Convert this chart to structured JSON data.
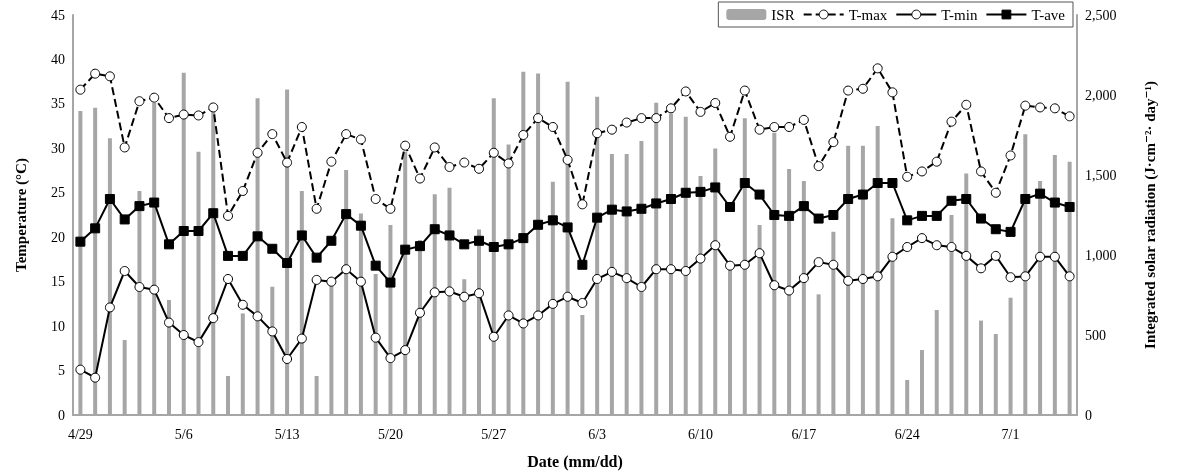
{
  "chart_data": {
    "type": "line",
    "xlabel": "Date (mm/dd)",
    "ylabel": "Temperature (°C)",
    "y2label": "Integrated solar radiation (J·cm⁻²· day⁻¹)",
    "categories": [
      "4/29",
      null,
      null,
      null,
      null,
      null,
      null,
      "5/6",
      null,
      null,
      null,
      null,
      null,
      null,
      "5/13",
      null,
      null,
      null,
      null,
      null,
      null,
      "5/20",
      null,
      null,
      null,
      null,
      null,
      null,
      "5/27",
      null,
      null,
      null,
      null,
      null,
      null,
      "6/3",
      null,
      null,
      null,
      null,
      null,
      null,
      "6/10",
      null,
      null,
      null,
      null,
      null,
      null,
      "6/17",
      null,
      null,
      null,
      null,
      null,
      null,
      "6/24",
      null,
      null,
      null,
      null,
      null,
      null,
      "7/1",
      null,
      null,
      null,
      null
    ],
    "series": [
      {
        "name": "ISR",
        "type": "bar",
        "axis": "y2",
        "color": "#a6a6a6",
        "values": [
          1900,
          1921,
          1729,
          469,
          1400,
          1950,
          719,
          2139,
          1646,
          1900,
          244,
          635,
          1979,
          802,
          2035,
          1400,
          244,
          820,
          1531,
          1260,
          881,
          1187,
          1646,
          1094,
          1379,
          1421,
          848,
          1160,
          1979,
          1691,
          2146,
          2135,
          1458,
          2083,
          625,
          1989,
          1631,
          1631,
          1712,
          1952,
          1885,
          1864,
          1494,
          1666,
          930,
          1854,
          1187,
          1764,
          1537,
          1462,
          754,
          1146,
          1683,
          1683,
          1806,
          1229,
          219,
          406,
          656,
          1250,
          1510,
          590,
          506,
          733,
          1754,
          1462,
          1625,
          1583
        ]
      },
      {
        "name": "T-max",
        "color": "#000000",
        "marker": "circle",
        "line_style": "dashed",
        "values": [
          36.6,
          38.4,
          38.1,
          30.1,
          35.3,
          35.7,
          33.4,
          33.8,
          33.7,
          34.6,
          22.4,
          25.2,
          29.5,
          31.6,
          28.4,
          32.4,
          23.2,
          28.5,
          31.6,
          31.0,
          24.3,
          23.2,
          30.3,
          26.6,
          30.1,
          27.9,
          28.4,
          27.7,
          29.5,
          28.3,
          31.5,
          33.4,
          32.4,
          28.7,
          23.7,
          31.7,
          32.1,
          32.9,
          33.4,
          33.4,
          34.5,
          36.4,
          34.1,
          35.1,
          31.3,
          36.5,
          32.1,
          32.4,
          32.4,
          33.2,
          28.0,
          30.7,
          36.5,
          36.7,
          39.0,
          36.3,
          26.8,
          27.4,
          28.5,
          33.0,
          34.9,
          27.4,
          25.0,
          29.2,
          34.8,
          34.6,
          34.5,
          33.6
        ]
      },
      {
        "name": "T-min",
        "color": "#000000",
        "marker": "circle",
        "line_style": "solid",
        "values": [
          5.1,
          4.2,
          12.1,
          16.2,
          14.4,
          14.1,
          10.4,
          9.0,
          8.2,
          10.9,
          15.3,
          12.4,
          11.1,
          9.4,
          6.3,
          8.6,
          15.2,
          15.0,
          16.4,
          15.0,
          8.7,
          6.4,
          7.3,
          11.5,
          13.8,
          13.9,
          13.3,
          13.7,
          8.8,
          11.2,
          10.3,
          11.2,
          12.5,
          13.3,
          12.6,
          15.3,
          16.1,
          15.4,
          14.4,
          16.4,
          16.4,
          16.2,
          17.6,
          19.1,
          16.8,
          16.9,
          18.2,
          14.6,
          14.0,
          15.4,
          17.2,
          16.9,
          15.1,
          15.3,
          15.6,
          17.8,
          18.9,
          19.9,
          19.1,
          18.9,
          17.9,
          16.5,
          17.9,
          15.5,
          15.6,
          17.8,
          17.8,
          15.6
        ]
      },
      {
        "name": "T-ave",
        "color": "#000000",
        "marker": "square",
        "line_style": "solid",
        "values": [
          19.5,
          21.0,
          24.3,
          22.0,
          23.5,
          23.9,
          19.2,
          20.7,
          20.7,
          22.7,
          17.9,
          17.9,
          20.1,
          18.7,
          17.1,
          20.2,
          17.7,
          19.6,
          22.6,
          21.3,
          16.8,
          14.9,
          18.6,
          19.0,
          20.9,
          20.2,
          19.2,
          19.6,
          18.9,
          19.2,
          19.9,
          21.4,
          21.9,
          21.1,
          16.9,
          22.2,
          23.1,
          22.9,
          23.2,
          23.8,
          24.3,
          25.0,
          25.1,
          25.6,
          23.4,
          26.1,
          24.8,
          22.5,
          22.4,
          23.5,
          22.1,
          22.5,
          24.3,
          24.8,
          26.1,
          26.1,
          21.9,
          22.4,
          22.4,
          24.1,
          24.3,
          22.1,
          20.9,
          20.6,
          24.3,
          24.9,
          23.9,
          23.4
        ]
      }
    ],
    "ylim": [
      0,
      45
    ],
    "yticks": [
      0,
      5,
      10,
      15,
      20,
      25,
      30,
      35,
      40,
      45
    ],
    "y2lim": [
      0,
      2500
    ],
    "y2ticks": [
      0,
      {
        "value": 500,
        "label": "500"
      },
      {
        "value": 1000,
        "label": "1,000"
      },
      {
        "value": 1500,
        "label": "1,500"
      },
      {
        "value": 2000,
        "label": "2,000"
      },
      {
        "value": 2500,
        "label": "2,500"
      }
    ],
    "grid": false,
    "legend": "top right"
  }
}
